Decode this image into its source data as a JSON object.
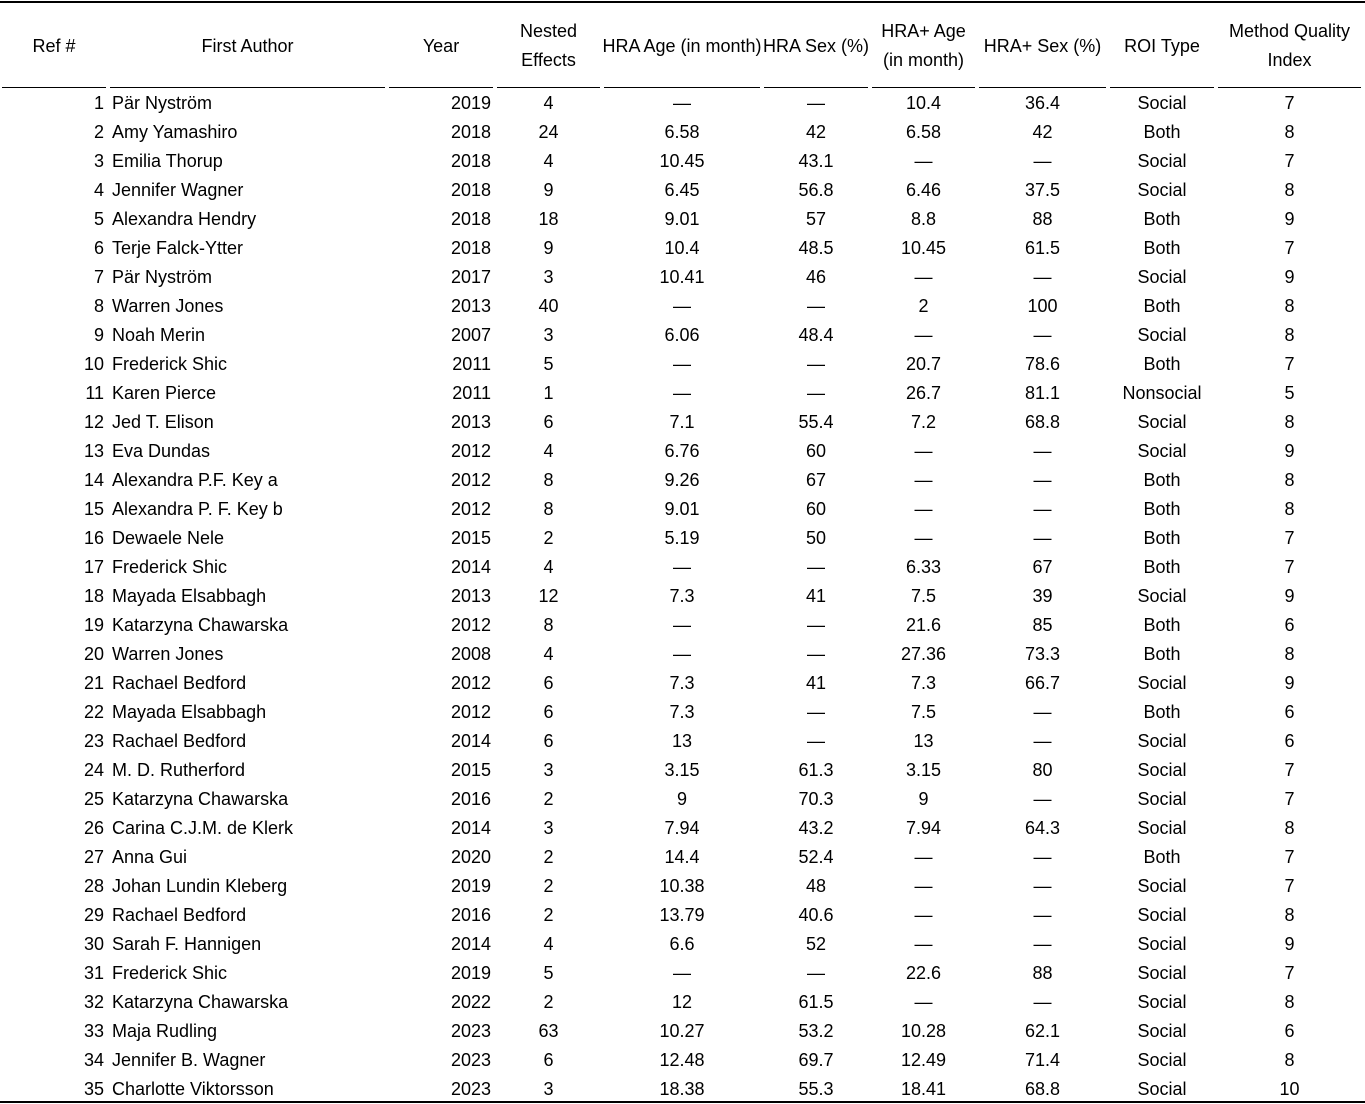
{
  "table": {
    "header": [
      "Ref #",
      "First Author",
      "Year",
      "Nested Effects",
      "HRA Age (in month)",
      "HRA Sex (%)",
      "HRA+ Age (in month)",
      "HRA+ Sex (%)",
      "ROI Type",
      "Method Quality Index"
    ],
    "rows": [
      [
        "1",
        "Pär Nyström",
        "2019",
        "4",
        "—",
        "—",
        "10.4",
        "36.4",
        "Social",
        "7"
      ],
      [
        "2",
        "Amy Yamashiro",
        "2018",
        "24",
        "6.58",
        "42",
        "6.58",
        "42",
        "Both",
        "8"
      ],
      [
        "3",
        "Emilia Thorup",
        "2018",
        "4",
        "10.45",
        "43.1",
        "—",
        "—",
        "Social",
        "7"
      ],
      [
        "4",
        "Jennifer Wagner",
        "2018",
        "9",
        "6.45",
        "56.8",
        "6.46",
        "37.5",
        "Social",
        "8"
      ],
      [
        "5",
        "Alexandra Hendry",
        "2018",
        "18",
        "9.01",
        "57",
        "8.8",
        "88",
        "Both",
        "9"
      ],
      [
        "6",
        "Terje Falck-Ytter",
        "2018",
        "9",
        "10.4",
        "48.5",
        "10.45",
        "61.5",
        "Both",
        "7"
      ],
      [
        "7",
        "Pär Nyström",
        "2017",
        "3",
        "10.41",
        "46",
        "—",
        "—",
        "Social",
        "9"
      ],
      [
        "8",
        "Warren Jones",
        "2013",
        "40",
        "—",
        "—",
        "2",
        "100",
        "Both",
        "8"
      ],
      [
        "9",
        "Noah Merin",
        "2007",
        "3",
        "6.06",
        "48.4",
        "—",
        "—",
        "Social",
        "8"
      ],
      [
        "10",
        "Frederick Shic",
        "2011",
        "5",
        "—",
        "—",
        "20.7",
        "78.6",
        "Both",
        "7"
      ],
      [
        "11",
        "Karen Pierce",
        "2011",
        "1",
        "—",
        "—",
        "26.7",
        "81.1",
        "Nonsocial",
        "5"
      ],
      [
        "12",
        "Jed T. Elison",
        "2013",
        "6",
        "7.1",
        "55.4",
        "7.2",
        "68.8",
        "Social",
        "8"
      ],
      [
        "13",
        "Eva Dundas",
        "2012",
        "4",
        "6.76",
        "60",
        "—",
        "—",
        "Social",
        "9"
      ],
      [
        "14",
        "Alexandra P.F. Key a",
        "2012",
        "8",
        "9.26",
        "67",
        "—",
        "—",
        "Both",
        "8"
      ],
      [
        "15",
        "Alexandra P. F. Key b",
        "2012",
        "8",
        "9.01",
        "60",
        "—",
        "—",
        "Both",
        "8"
      ],
      [
        "16",
        "Dewaele Nele",
        "2015",
        "2",
        "5.19",
        "50",
        "—",
        "—",
        "Both",
        "7"
      ],
      [
        "17",
        "Frederick Shic",
        "2014",
        "4",
        "—",
        "—",
        "6.33",
        "67",
        "Both",
        "7"
      ],
      [
        "18",
        "Mayada Elsabbagh",
        "2013",
        "12",
        "7.3",
        "41",
        "7.5",
        "39",
        "Social",
        "9"
      ],
      [
        "19",
        "Katarzyna Chawarska",
        "2012",
        "8",
        "—",
        "—",
        "21.6",
        "85",
        "Both",
        "6"
      ],
      [
        "20",
        "Warren Jones",
        "2008",
        "4",
        "—",
        "—",
        "27.36",
        "73.3",
        "Both",
        "8"
      ],
      [
        "21",
        "Rachael Bedford",
        "2012",
        "6",
        "7.3",
        "41",
        "7.3",
        "66.7",
        "Social",
        "9"
      ],
      [
        "22",
        "Mayada Elsabbagh",
        "2012",
        "6",
        "7.3",
        "—",
        "7.5",
        "—",
        "Both",
        "6"
      ],
      [
        "23",
        "Rachael Bedford",
        "2014",
        "6",
        "13",
        "—",
        "13",
        "—",
        "Social",
        "6"
      ],
      [
        "24",
        "M. D. Rutherford",
        "2015",
        "3",
        "3.15",
        "61.3",
        "3.15",
        "80",
        "Social",
        "7"
      ],
      [
        "25",
        "Katarzyna Chawarska",
        "2016",
        "2",
        "9",
        "70.3",
        "9",
        "—",
        "Social",
        "7"
      ],
      [
        "26",
        "Carina C.J.M. de Klerk",
        "2014",
        "3",
        "7.94",
        "43.2",
        "7.94",
        "64.3",
        "Social",
        "8"
      ],
      [
        "27",
        "Anna Gui",
        "2020",
        "2",
        "14.4",
        "52.4",
        "—",
        "—",
        "Both",
        "7"
      ],
      [
        "28",
        "Johan Lundin Kleberg",
        "2019",
        "2",
        "10.38",
        "48",
        "—",
        "—",
        "Social",
        "7"
      ],
      [
        "29",
        "Rachael Bedford",
        "2016",
        "2",
        "13.79",
        "40.6",
        "—",
        "—",
        "Social",
        "8"
      ],
      [
        "30",
        "Sarah F. Hannigen",
        "2014",
        "4",
        "6.6",
        "52",
        "—",
        "—",
        "Social",
        "9"
      ],
      [
        "31",
        "Frederick Shic",
        "2019",
        "5",
        "—",
        "—",
        "22.6",
        "88",
        "Social",
        "7"
      ],
      [
        "32",
        "Katarzyna Chawarska",
        "2022",
        "2",
        "12",
        "61.5",
        "—",
        "—",
        "Social",
        "8"
      ],
      [
        "33",
        "Maja Rudling",
        "2023",
        "63",
        "10.27",
        "53.2",
        "10.28",
        "62.1",
        "Social",
        "6"
      ],
      [
        "34",
        "Jennifer B. Wagner",
        "2023",
        "6",
        "12.48",
        "69.7",
        "12.49",
        "71.4",
        "Social",
        "8"
      ],
      [
        "35",
        "Charlotte Viktorsson",
        "2023",
        "3",
        "18.38",
        "55.3",
        "18.41",
        "68.8",
        "Social",
        "10"
      ]
    ]
  }
}
